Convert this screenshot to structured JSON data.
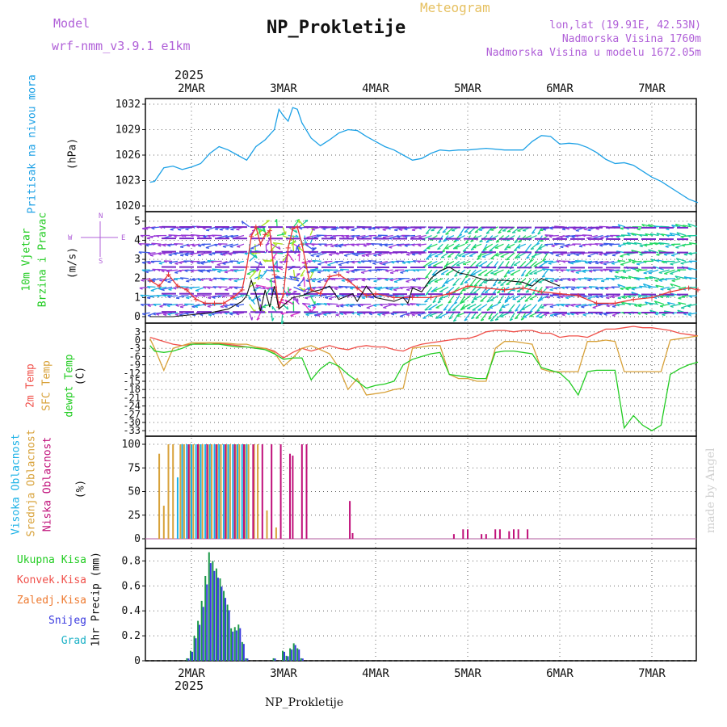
{
  "header": {
    "model_label": "Model",
    "model_name": "wrf-nmm_v3.9.1 e1km",
    "title": "NP_Prokletije",
    "subtitle": "Meteogram",
    "location": "lon,lat (19.91E, 42.53N)",
    "altitude": "Nadmorska Visina 1760m",
    "model_altitude": "Nadmorska Visina u modelu 1672.05m",
    "footer": "NP_Prokletije",
    "watermark": "made by Angel",
    "year": "2025"
  },
  "colors": {
    "pressure": "#1da1e6",
    "temp2m": "#f0504a",
    "sfc": "#d8a23a",
    "dew": "#22cc22",
    "hi_cloud": "#1bb1e6",
    "mid_cloud": "#d8a23a",
    "low_cloud": "#c0107a",
    "precip_total": "#1d9a4a",
    "snow": "#3a3adf",
    "label_purple": "#b060d8"
  },
  "chart_data": [
    {
      "type": "line",
      "name": "pressure",
      "ylabel": "Pritisak na nivou mora",
      "unit": "(hPa)",
      "ylim": [
        1020,
        1032
      ],
      "yticks": [
        "1020",
        "1023",
        "1026",
        "1029",
        "1032"
      ],
      "xticks": [
        "2MAR",
        "3MAR",
        "4MAR",
        "5MAR",
        "6MAR",
        "7MAR"
      ],
      "x_day": [
        1.55,
        1.6,
        1.7,
        1.8,
        1.9,
        2.0,
        2.1,
        2.2,
        2.3,
        2.4,
        2.5,
        2.6,
        2.65,
        2.7,
        2.8,
        2.9,
        2.95,
        3.0,
        3.05,
        3.1,
        3.15,
        3.2,
        3.25,
        3.3,
        3.4,
        3.5,
        3.6,
        3.7,
        3.8,
        3.9,
        4.0,
        4.1,
        4.2,
        4.3,
        4.4,
        4.5,
        4.6,
        4.7,
        4.8,
        4.9,
        5.0,
        5.2,
        5.4,
        5.6,
        5.7,
        5.8,
        5.9,
        6.0,
        6.1,
        6.2,
        6.3,
        6.4,
        6.5,
        6.6,
        6.7,
        6.8,
        6.9,
        7.0,
        7.1,
        7.2,
        7.3,
        7.4,
        7.5
      ],
      "values": [
        1022.8,
        1022.9,
        1024.5,
        1024.7,
        1024.3,
        1024.6,
        1025.0,
        1026.2,
        1027.0,
        1026.6,
        1026.0,
        1025.4,
        1026.2,
        1027.0,
        1027.8,
        1029.0,
        1031.4,
        1030.6,
        1030.0,
        1031.6,
        1031.4,
        1029.8,
        1028.9,
        1028.0,
        1027.1,
        1027.8,
        1028.6,
        1029.0,
        1028.9,
        1028.2,
        1027.6,
        1027.0,
        1026.6,
        1026.0,
        1025.4,
        1025.6,
        1026.2,
        1026.6,
        1026.5,
        1026.6,
        1026.6,
        1026.8,
        1026.6,
        1026.6,
        1027.6,
        1028.3,
        1028.2,
        1027.3,
        1027.4,
        1027.3,
        1026.9,
        1026.3,
        1025.5,
        1025.0,
        1025.1,
        1024.8,
        1024.1,
        1023.4,
        1022.9,
        1022.2,
        1021.5,
        1020.8,
        1020.4
      ]
    },
    {
      "type": "line",
      "name": "wind",
      "ylabel": "10m Vjetar Brzina i Pravac",
      "unit": "(m/s)",
      "ylim": [
        0,
        5.5
      ],
      "yticks": [
        "0",
        "1",
        "2",
        "3",
        "4",
        "5"
      ],
      "direction_legend": [
        "N",
        "W",
        "E",
        "S"
      ],
      "series": [
        {
          "name": "speed",
          "x_day": [
            1.55,
            1.65,
            1.75,
            1.85,
            1.95,
            2.05,
            2.15,
            2.25,
            2.35,
            2.45,
            2.55,
            2.6,
            2.65,
            2.7,
            2.75,
            2.8,
            2.85,
            2.9,
            2.95,
            3.0,
            3.05,
            3.1,
            3.15,
            3.2,
            3.3,
            3.4,
            3.5,
            3.6,
            3.7,
            3.8,
            3.9,
            4.0,
            4.2,
            4.4,
            4.6,
            4.8,
            5.0,
            5.2,
            5.4,
            5.6,
            5.8,
            6.0,
            6.2,
            6.4,
            6.6,
            6.8,
            7.0,
            7.2,
            7.4,
            7.5
          ],
          "values": [
            1.9,
            1.6,
            2.2,
            1.6,
            1.4,
            0.9,
            0.7,
            0.7,
            0.7,
            1.0,
            1.4,
            2.6,
            4.2,
            4.7,
            3.8,
            4.3,
            4.5,
            2.2,
            0.5,
            1.2,
            3.6,
            4.6,
            4.7,
            3.8,
            1.4,
            1.2,
            2.1,
            2.2,
            1.9,
            1.5,
            1.1,
            1.2,
            1.0,
            1.0,
            1.0,
            1.2,
            1.6,
            1.5,
            1.4,
            1.5,
            1.3,
            1.2,
            1.1,
            0.7,
            0.7,
            0.9,
            1.0,
            1.3,
            1.5,
            1.4
          ]
        },
        {
          "name": "gust",
          "x_day": [
            1.55,
            1.8,
            2.0,
            2.2,
            2.4,
            2.55,
            2.6,
            2.65,
            2.7,
            2.75,
            2.8,
            2.85,
            2.9,
            2.95,
            3.0,
            3.1,
            3.2,
            3.3,
            3.4,
            3.5,
            3.6,
            3.7,
            3.75,
            3.8,
            3.9,
            4.0,
            4.2,
            4.3,
            4.35,
            4.4,
            4.5,
            4.6,
            4.7,
            4.8,
            4.9,
            5.0,
            5.2,
            5.4,
            5.6,
            5.7,
            5.8,
            6.0
          ],
          "values": [
            0.0,
            0.0,
            0.1,
            0.2,
            0.4,
            0.8,
            1.1,
            1.9,
            1.2,
            0.3,
            1.4,
            0.5,
            1.6,
            0.4,
            0.6,
            1.0,
            1.1,
            1.3,
            1.4,
            1.6,
            0.9,
            1.1,
            1.2,
            0.8,
            1.6,
            1.0,
            0.8,
            1.0,
            0.7,
            1.5,
            1.3,
            2.0,
            2.4,
            2.6,
            2.3,
            2.2,
            1.9,
            1.9,
            1.8,
            1.6,
            2.0,
            1.6
          ]
        }
      ]
    },
    {
      "type": "line",
      "name": "temperature",
      "ylabel": "2m Temp / SFC Temp / dewpt Temp",
      "unit": "(C)",
      "ylim": [
        -35,
        5
      ],
      "yticks": [
        "3",
        "0",
        "-3",
        "-6",
        "-9",
        "-12",
        "-15",
        "-18",
        "-21",
        "-24",
        "-27",
        "-30",
        "-33"
      ],
      "x_day": [
        1.55,
        1.6,
        1.7,
        1.8,
        1.9,
        2.0,
        2.1,
        2.2,
        2.3,
        2.4,
        2.5,
        2.6,
        2.7,
        2.8,
        2.9,
        3.0,
        3.1,
        3.2,
        3.3,
        3.4,
        3.5,
        3.6,
        3.7,
        3.8,
        3.9,
        4.0,
        4.1,
        4.2,
        4.3,
        4.4,
        4.5,
        4.6,
        4.7,
        4.8,
        4.9,
        5.0,
        5.1,
        5.2,
        5.3,
        5.4,
        5.5,
        5.6,
        5.7,
        5.8,
        5.9,
        6.0,
        6.1,
        6.2,
        6.3,
        6.4,
        6.5,
        6.6,
        6.7,
        6.8,
        6.9,
        7.0,
        7.1,
        7.2,
        7.3,
        7.4,
        7.5
      ],
      "series": [
        {
          "name": "2m Temp",
          "values": [
            1.0,
            0.5,
            -0.5,
            -1.5,
            -2.0,
            -1.5,
            -1.2,
            -1.0,
            -1.3,
            -1.6,
            -2.0,
            -2.5,
            -3.0,
            -3.0,
            -4.0,
            -6.5,
            -4.5,
            -3.0,
            -4.0,
            -3.0,
            -2.0,
            -3.0,
            -3.5,
            -2.5,
            -2.0,
            -2.5,
            -2.5,
            -3.5,
            -4.0,
            -2.5,
            -1.5,
            -1.0,
            -0.5,
            0.0,
            0.5,
            0.5,
            1.5,
            3.0,
            3.5,
            3.5,
            3.0,
            3.5,
            3.5,
            2.5,
            2.5,
            1.0,
            1.5,
            1.5,
            1.0,
            2.5,
            4.0,
            4.0,
            4.5,
            5.0,
            4.5,
            4.5,
            4.0,
            3.5,
            2.5,
            2.0,
            1.5
          ]
        },
        {
          "name": "SFC Temp",
          "values": [
            0.5,
            -3.0,
            -11.0,
            -3.0,
            -2.0,
            -1.0,
            -1.0,
            -1.0,
            -1.0,
            -1.2,
            -1.5,
            -1.5,
            -2.5,
            -3.0,
            -4.5,
            -9.5,
            -6.5,
            -3.0,
            -2.0,
            -3.5,
            -5.0,
            -10.0,
            -18.0,
            -14.0,
            -20.0,
            -19.5,
            -19.0,
            -18.0,
            -17.5,
            -3.0,
            -2.5,
            -2.0,
            -2.0,
            -12.5,
            -14.0,
            -14.0,
            -15.0,
            -15.0,
            -3.0,
            -0.5,
            -0.5,
            -1.0,
            -1.5,
            -10.5,
            -11.5,
            -11.5,
            -11.5,
            -11.5,
            -0.5,
            -0.5,
            0.0,
            -0.5,
            -11.5,
            -11.5,
            -11.5,
            -11.5,
            -11.5,
            0.0,
            0.5,
            1.0,
            1.5
          ]
        },
        {
          "name": "dewpt Temp",
          "values": [
            -2.0,
            -4.0,
            -4.5,
            -4.0,
            -3.0,
            -1.5,
            -1.5,
            -1.5,
            -1.5,
            -2.0,
            -2.5,
            -2.5,
            -3.0,
            -3.5,
            -5.0,
            -7.0,
            -6.5,
            -6.5,
            -14.5,
            -10.5,
            -8.0,
            -9.5,
            -12.5,
            -15.0,
            -17.5,
            -16.5,
            -16.0,
            -15.0,
            -9.0,
            -7.0,
            -6.0,
            -5.0,
            -4.5,
            -12.5,
            -13.0,
            -13.5,
            -14.0,
            -14.0,
            -4.5,
            -4.0,
            -4.0,
            -4.5,
            -5.0,
            -10.0,
            -11.0,
            -12.0,
            -15.0,
            -20.0,
            -11.5,
            -11.0,
            -11.0,
            -11.0,
            -32.0,
            -27.5,
            -31.0,
            -33.0,
            -31.0,
            -12.5,
            -10.5,
            -9.0,
            -8.0
          ]
        }
      ]
    },
    {
      "type": "bar",
      "name": "cloud",
      "ylabel": "Visoka Oblacnost / Srednja Oblacnost / Niska Oblacnost",
      "unit": "(%)",
      "ylim": [
        0,
        100
      ],
      "yticks": [
        "0",
        "25",
        "50",
        "75",
        "100"
      ],
      "series": [
        {
          "name": "Visoka Oblacnost",
          "x_day": [
            1.85,
            1.9,
            1.95,
            2.0,
            2.05,
            2.1,
            2.15,
            2.2,
            2.25,
            2.3,
            2.35,
            2.4,
            2.45,
            2.5,
            2.55,
            2.6
          ],
          "values": [
            65,
            100,
            100,
            100,
            100,
            100,
            100,
            100,
            100,
            100,
            100,
            100,
            100,
            100,
            100,
            100
          ]
        },
        {
          "name": "Srednja Oblacnost",
          "x_day": [
            1.65,
            1.7,
            1.75,
            1.8,
            1.88,
            1.92,
            1.98,
            2.02,
            2.08,
            2.12,
            2.18,
            2.22,
            2.28,
            2.32,
            2.38,
            2.42,
            2.48,
            2.52,
            2.58,
            2.62,
            2.68,
            2.72,
            2.82,
            2.92
          ],
          "values": [
            90,
            35,
            100,
            100,
            100,
            100,
            100,
            100,
            100,
            100,
            100,
            100,
            100,
            100,
            100,
            100,
            100,
            100,
            100,
            100,
            100,
            100,
            30,
            12
          ]
        },
        {
          "name": "Niska Oblacnost",
          "x_day": [
            1.97,
            2.07,
            2.17,
            2.27,
            2.37,
            2.47,
            2.57,
            2.67,
            2.77,
            2.87,
            2.97,
            3.07,
            3.1,
            3.2,
            3.25,
            3.72,
            3.75,
            4.85,
            4.95,
            5.0,
            5.15,
            5.2,
            5.3,
            5.35,
            5.45,
            5.5,
            5.55,
            5.65
          ],
          "values": [
            100,
            100,
            100,
            100,
            100,
            100,
            100,
            100,
            100,
            100,
            100,
            90,
            88,
            100,
            100,
            40,
            6,
            5,
            10,
            10,
            5,
            5,
            10,
            10,
            8,
            10,
            10,
            10
          ]
        }
      ]
    },
    {
      "type": "bar",
      "name": "precip",
      "ylabel": "1hr Precip",
      "unit": "(mm)",
      "ylim": [
        0,
        0.9
      ],
      "yticks": [
        "0",
        "0.2",
        "0.4",
        "0.6",
        "0.8"
      ],
      "legend": [
        "Ukupna Kisa",
        "Konvek.Kisa",
        "Zaledj.Kisa",
        "Snijeg",
        "Grad"
      ],
      "x_day": [
        1.96,
        2.0,
        2.04,
        2.08,
        2.12,
        2.16,
        2.2,
        2.24,
        2.28,
        2.32,
        2.36,
        2.4,
        2.44,
        2.48,
        2.52,
        2.56,
        2.6,
        2.9,
        3.0,
        3.04,
        3.08,
        3.12,
        3.16,
        3.2
      ],
      "values": [
        0.02,
        0.08,
        0.2,
        0.32,
        0.48,
        0.68,
        0.87,
        0.8,
        0.74,
        0.66,
        0.56,
        0.45,
        0.26,
        0.27,
        0.29,
        0.15,
        0.02,
        0.02,
        0.08,
        0.04,
        0.1,
        0.14,
        0.1,
        0.02
      ]
    }
  ]
}
